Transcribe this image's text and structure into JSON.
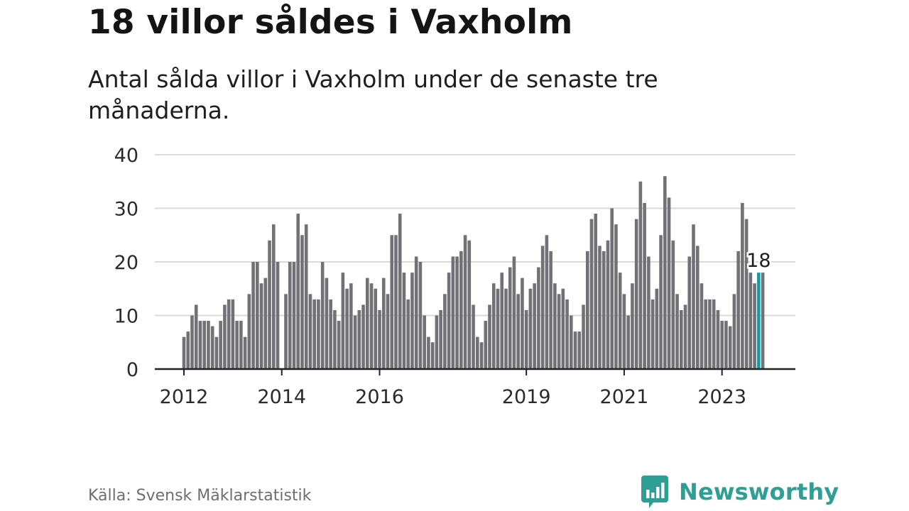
{
  "header": {
    "title": "18 villor såldes i Vaxholm",
    "subtitle": "Antal sålda villor i Vaxholm under de senaste tre månaderna."
  },
  "footer": {
    "source": "Källa: Svensk Mäklarstatistik",
    "brand": "Newsworthy"
  },
  "colors": {
    "bar": "#717176",
    "highlight": "#1a9aa0",
    "grid": "#d9d9d9",
    "axis": "#222222",
    "brand": "#2f9e95"
  },
  "chart_data": {
    "type": "bar",
    "title": "18 villor såldes i Vaxholm",
    "subtitle": "Antal sålda villor i Vaxholm under de senaste tre månaderna.",
    "xlabel": "",
    "ylabel": "",
    "ylim": [
      0,
      40
    ],
    "yticks": [
      0,
      10,
      20,
      30,
      40
    ],
    "grid": true,
    "start": {
      "year": 2012,
      "month": 1
    },
    "xtick_labels": [
      {
        "label": "2012",
        "index": 0
      },
      {
        "label": "2014",
        "index": 24
      },
      {
        "label": "2016",
        "index": 48
      },
      {
        "label": "2019",
        "index": 84
      },
      {
        "label": "2021",
        "index": 108
      },
      {
        "label": "2023",
        "index": 132
      }
    ],
    "highlight_index": 141,
    "highlight_label": "18",
    "values": [
      6,
      7,
      10,
      12,
      9,
      9,
      9,
      8,
      6,
      9,
      12,
      13,
      13,
      9,
      9,
      6,
      14,
      20,
      20,
      16,
      17,
      24,
      27,
      20,
      0,
      14,
      20,
      20,
      29,
      25,
      27,
      14,
      13,
      13,
      20,
      17,
      13,
      11,
      9,
      18,
      15,
      16,
      10,
      11,
      12,
      17,
      16,
      15,
      11,
      17,
      14,
      25,
      25,
      29,
      18,
      13,
      18,
      21,
      20,
      10,
      6,
      5,
      10,
      11,
      14,
      18,
      21,
      21,
      22,
      25,
      24,
      12,
      6,
      5,
      9,
      12,
      16,
      15,
      18,
      15,
      19,
      21,
      14,
      17,
      11,
      15,
      16,
      19,
      23,
      25,
      22,
      16,
      14,
      15,
      13,
      10,
      7,
      7,
      12,
      22,
      28,
      29,
      23,
      22,
      24,
      30,
      27,
      18,
      14,
      10,
      16,
      28,
      35,
      31,
      21,
      13,
      15,
      25,
      36,
      32,
      24,
      14,
      11,
      12,
      21,
      27,
      23,
      16,
      13,
      13,
      13,
      11,
      9,
      9,
      8,
      14,
      22,
      31,
      28,
      18,
      16,
      18,
      18
    ]
  }
}
